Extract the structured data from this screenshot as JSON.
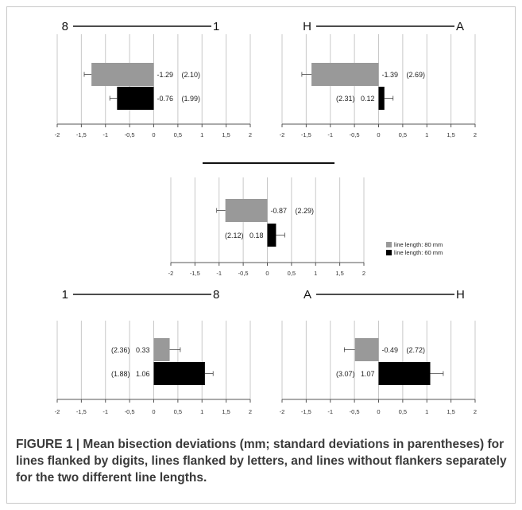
{
  "caption": {
    "text": "FIGURE 1 | Mean bisection deviations (mm; standard deviations in parentheses) for lines flanked by digits, lines flanked by letters, and lines without flankers separately for the two different line lengths."
  },
  "legend": {
    "placement": "right",
    "items": [
      {
        "label": "line length: 80 mm",
        "color": "#999999"
      },
      {
        "label": "line length: 60 mm",
        "color": "#000000"
      }
    ]
  },
  "colors": {
    "series_80": "#999999",
    "series_60": "#000000",
    "grid": "#c8c8c8",
    "axis": "#555555"
  },
  "chart_data": [
    {
      "type": "bar",
      "orientation": "horizontal",
      "flankers": {
        "left": "8",
        "right": "1"
      },
      "xlim": [
        -2,
        2
      ],
      "xticks": [
        "-2",
        "-1,5",
        "-1",
        "-0,5",
        "0",
        "0,5",
        "1",
        "1,5",
        "2"
      ],
      "grid": true,
      "series": [
        {
          "name": "line length: 80 mm",
          "value": -1.29,
          "error": 0.15,
          "value_label": "-1.29",
          "sd_label": "(2.10)"
        },
        {
          "name": "line length: 60 mm",
          "value": -0.76,
          "error": 0.15,
          "value_label": "-0.76",
          "sd_label": "(1.99)"
        }
      ]
    },
    {
      "type": "bar",
      "orientation": "horizontal",
      "flankers": {
        "left": "H",
        "right": "A"
      },
      "xlim": [
        -2,
        2
      ],
      "xticks": [
        "-2",
        "-1,5",
        "-1",
        "-0,5",
        "0",
        "0,5",
        "1",
        "1,5",
        "2"
      ],
      "grid": true,
      "series": [
        {
          "name": "line length: 80 mm",
          "value": -1.39,
          "error": 0.2,
          "value_label": "-1.39",
          "sd_label": "(2.69)"
        },
        {
          "name": "line length: 60 mm",
          "value": 0.12,
          "error": 0.18,
          "value_label": "0.12",
          "sd_label": "(2.31)"
        }
      ]
    },
    {
      "type": "bar",
      "orientation": "horizontal",
      "flankers": {
        "left": "",
        "right": ""
      },
      "xlim": [
        -2,
        2
      ],
      "xticks": [
        "-2",
        "-1,5",
        "-1",
        "-0,5",
        "0",
        "0,5",
        "1",
        "1,5",
        "2"
      ],
      "grid": true,
      "series": [
        {
          "name": "line length: 80 mm",
          "value": -0.87,
          "error": 0.18,
          "value_label": "-0.87",
          "sd_label": "(2.29)"
        },
        {
          "name": "line length: 60 mm",
          "value": 0.18,
          "error": 0.18,
          "value_label": "0.18",
          "sd_label": "(2.12)"
        }
      ]
    },
    {
      "type": "bar",
      "orientation": "horizontal",
      "flankers": {
        "left": "1",
        "right": "8"
      },
      "xlim": [
        -2,
        2
      ],
      "xticks": [
        "-2",
        "-1,5",
        "-1",
        "-0,5",
        "0",
        "0,5",
        "1",
        "1,5",
        "2"
      ],
      "grid": true,
      "series": [
        {
          "name": "line length: 80 mm",
          "value": 0.33,
          "error": 0.22,
          "value_label": "0.33",
          "sd_label": "(2.36)"
        },
        {
          "name": "line length: 60 mm",
          "value": 1.06,
          "error": 0.17,
          "value_label": "1.06",
          "sd_label": "(1.88)"
        }
      ]
    },
    {
      "type": "bar",
      "orientation": "horizontal",
      "flankers": {
        "left": "A",
        "right": "H"
      },
      "xlim": [
        -2,
        2
      ],
      "xticks": [
        "-2",
        "-1,5",
        "-1",
        "-0,5",
        "0",
        "0,5",
        "1",
        "1,5",
        "2"
      ],
      "grid": true,
      "series": [
        {
          "name": "line length: 80 mm",
          "value": -0.49,
          "error": 0.22,
          "value_label": "-0.49",
          "sd_label": "(2.72)"
        },
        {
          "name": "line length: 60 mm",
          "value": 1.07,
          "error": 0.27,
          "value_label": "1.07",
          "sd_label": "(3.07)"
        }
      ]
    }
  ]
}
